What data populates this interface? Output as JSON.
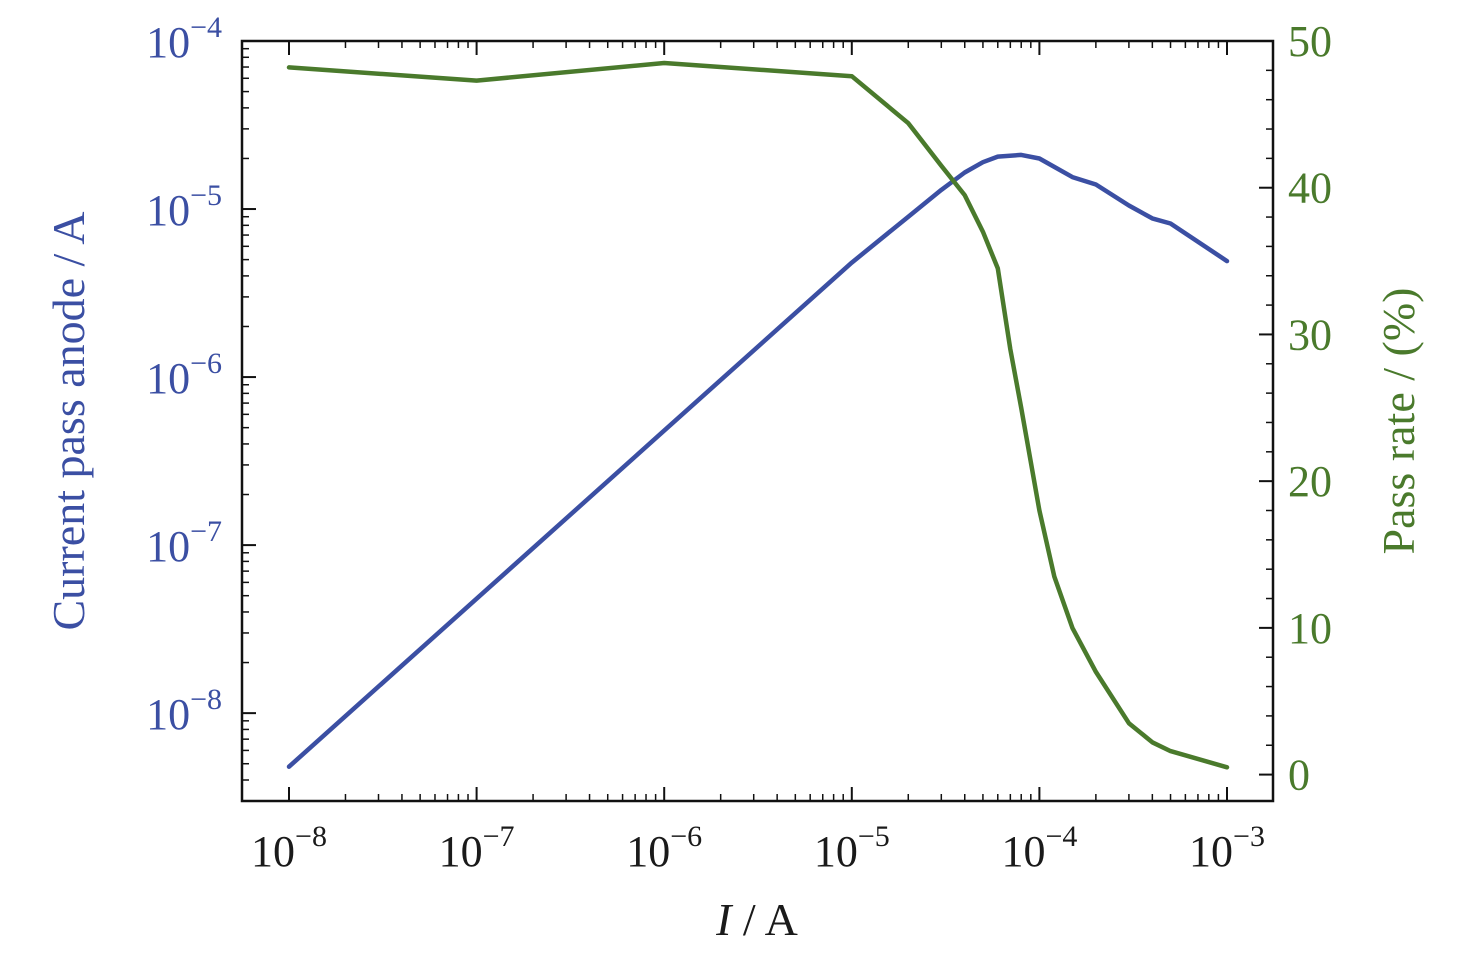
{
  "chart_data": {
    "type": "line",
    "xlabel": {
      "italic": "I",
      "rest": " / A"
    },
    "ylabel_left": "Current pass anode / A",
    "ylabel_right": "Pass rate / (%)",
    "x_scale": "log",
    "x_range": [
      1e-08,
      0.001
    ],
    "x_ticks": [
      {
        "value": 1e-08,
        "base": "10",
        "exp": "−8"
      },
      {
        "value": 1e-07,
        "base": "10",
        "exp": "−7"
      },
      {
        "value": 1e-06,
        "base": "10",
        "exp": "−6"
      },
      {
        "value": 1e-05,
        "base": "10",
        "exp": "−5"
      },
      {
        "value": 0.0001,
        "base": "10",
        "exp": "−4"
      },
      {
        "value": 0.001,
        "base": "10",
        "exp": "−3"
      }
    ],
    "y_left_scale": "log",
    "y_left_range": [
      3e-09,
      0.0001
    ],
    "y_left_ticks": [
      {
        "value": 1e-08,
        "base": "10",
        "exp": "−8"
      },
      {
        "value": 1e-07,
        "base": "10",
        "exp": "−7"
      },
      {
        "value": 1e-06,
        "base": "10",
        "exp": "−6"
      },
      {
        "value": 1e-05,
        "base": "10",
        "exp": "−5"
      },
      {
        "value": 0.0001,
        "base": "10",
        "exp": "−4"
      }
    ],
    "y_right_scale": "linear",
    "y_right_range": [
      -1.8,
      50
    ],
    "y_right_ticks": [
      "0",
      "10",
      "20",
      "30",
      "40",
      "50"
    ],
    "grid": false,
    "series": [
      {
        "axis": "left",
        "color": "#3b4fa3",
        "x": [
          1e-08,
          1e-07,
          1e-06,
          1e-05,
          2e-05,
          3e-05,
          4e-05,
          5e-05,
          6e-05,
          8e-05,
          0.0001,
          0.00015,
          0.0002,
          0.0003,
          0.0004,
          0.0005,
          0.001
        ],
        "y": [
          4.8e-09,
          4.8e-08,
          4.8e-07,
          4.8e-06,
          9e-06,
          1.3e-05,
          1.65e-05,
          1.9e-05,
          2.05e-05,
          2.1e-05,
          2e-05,
          1.55e-05,
          1.4e-05,
          1.05e-05,
          8.8e-06,
          8.2e-06,
          4.9e-06
        ]
      },
      {
        "axis": "right",
        "color": "#4a7a2c",
        "x": [
          1e-08,
          1e-07,
          1e-06,
          1e-05,
          2e-05,
          3e-05,
          4e-05,
          5e-05,
          6e-05,
          7e-05,
          8e-05,
          0.0001,
          0.00012,
          0.00015,
          0.0002,
          0.0003,
          0.0004,
          0.0005,
          0.001
        ],
        "y": [
          48.2,
          47.3,
          48.5,
          47.6,
          44.4,
          41.5,
          39.5,
          37.0,
          34.5,
          29.0,
          25.0,
          18.0,
          13.5,
          10.0,
          7.0,
          3.5,
          2.2,
          1.6,
          0.5
        ]
      }
    ]
  }
}
